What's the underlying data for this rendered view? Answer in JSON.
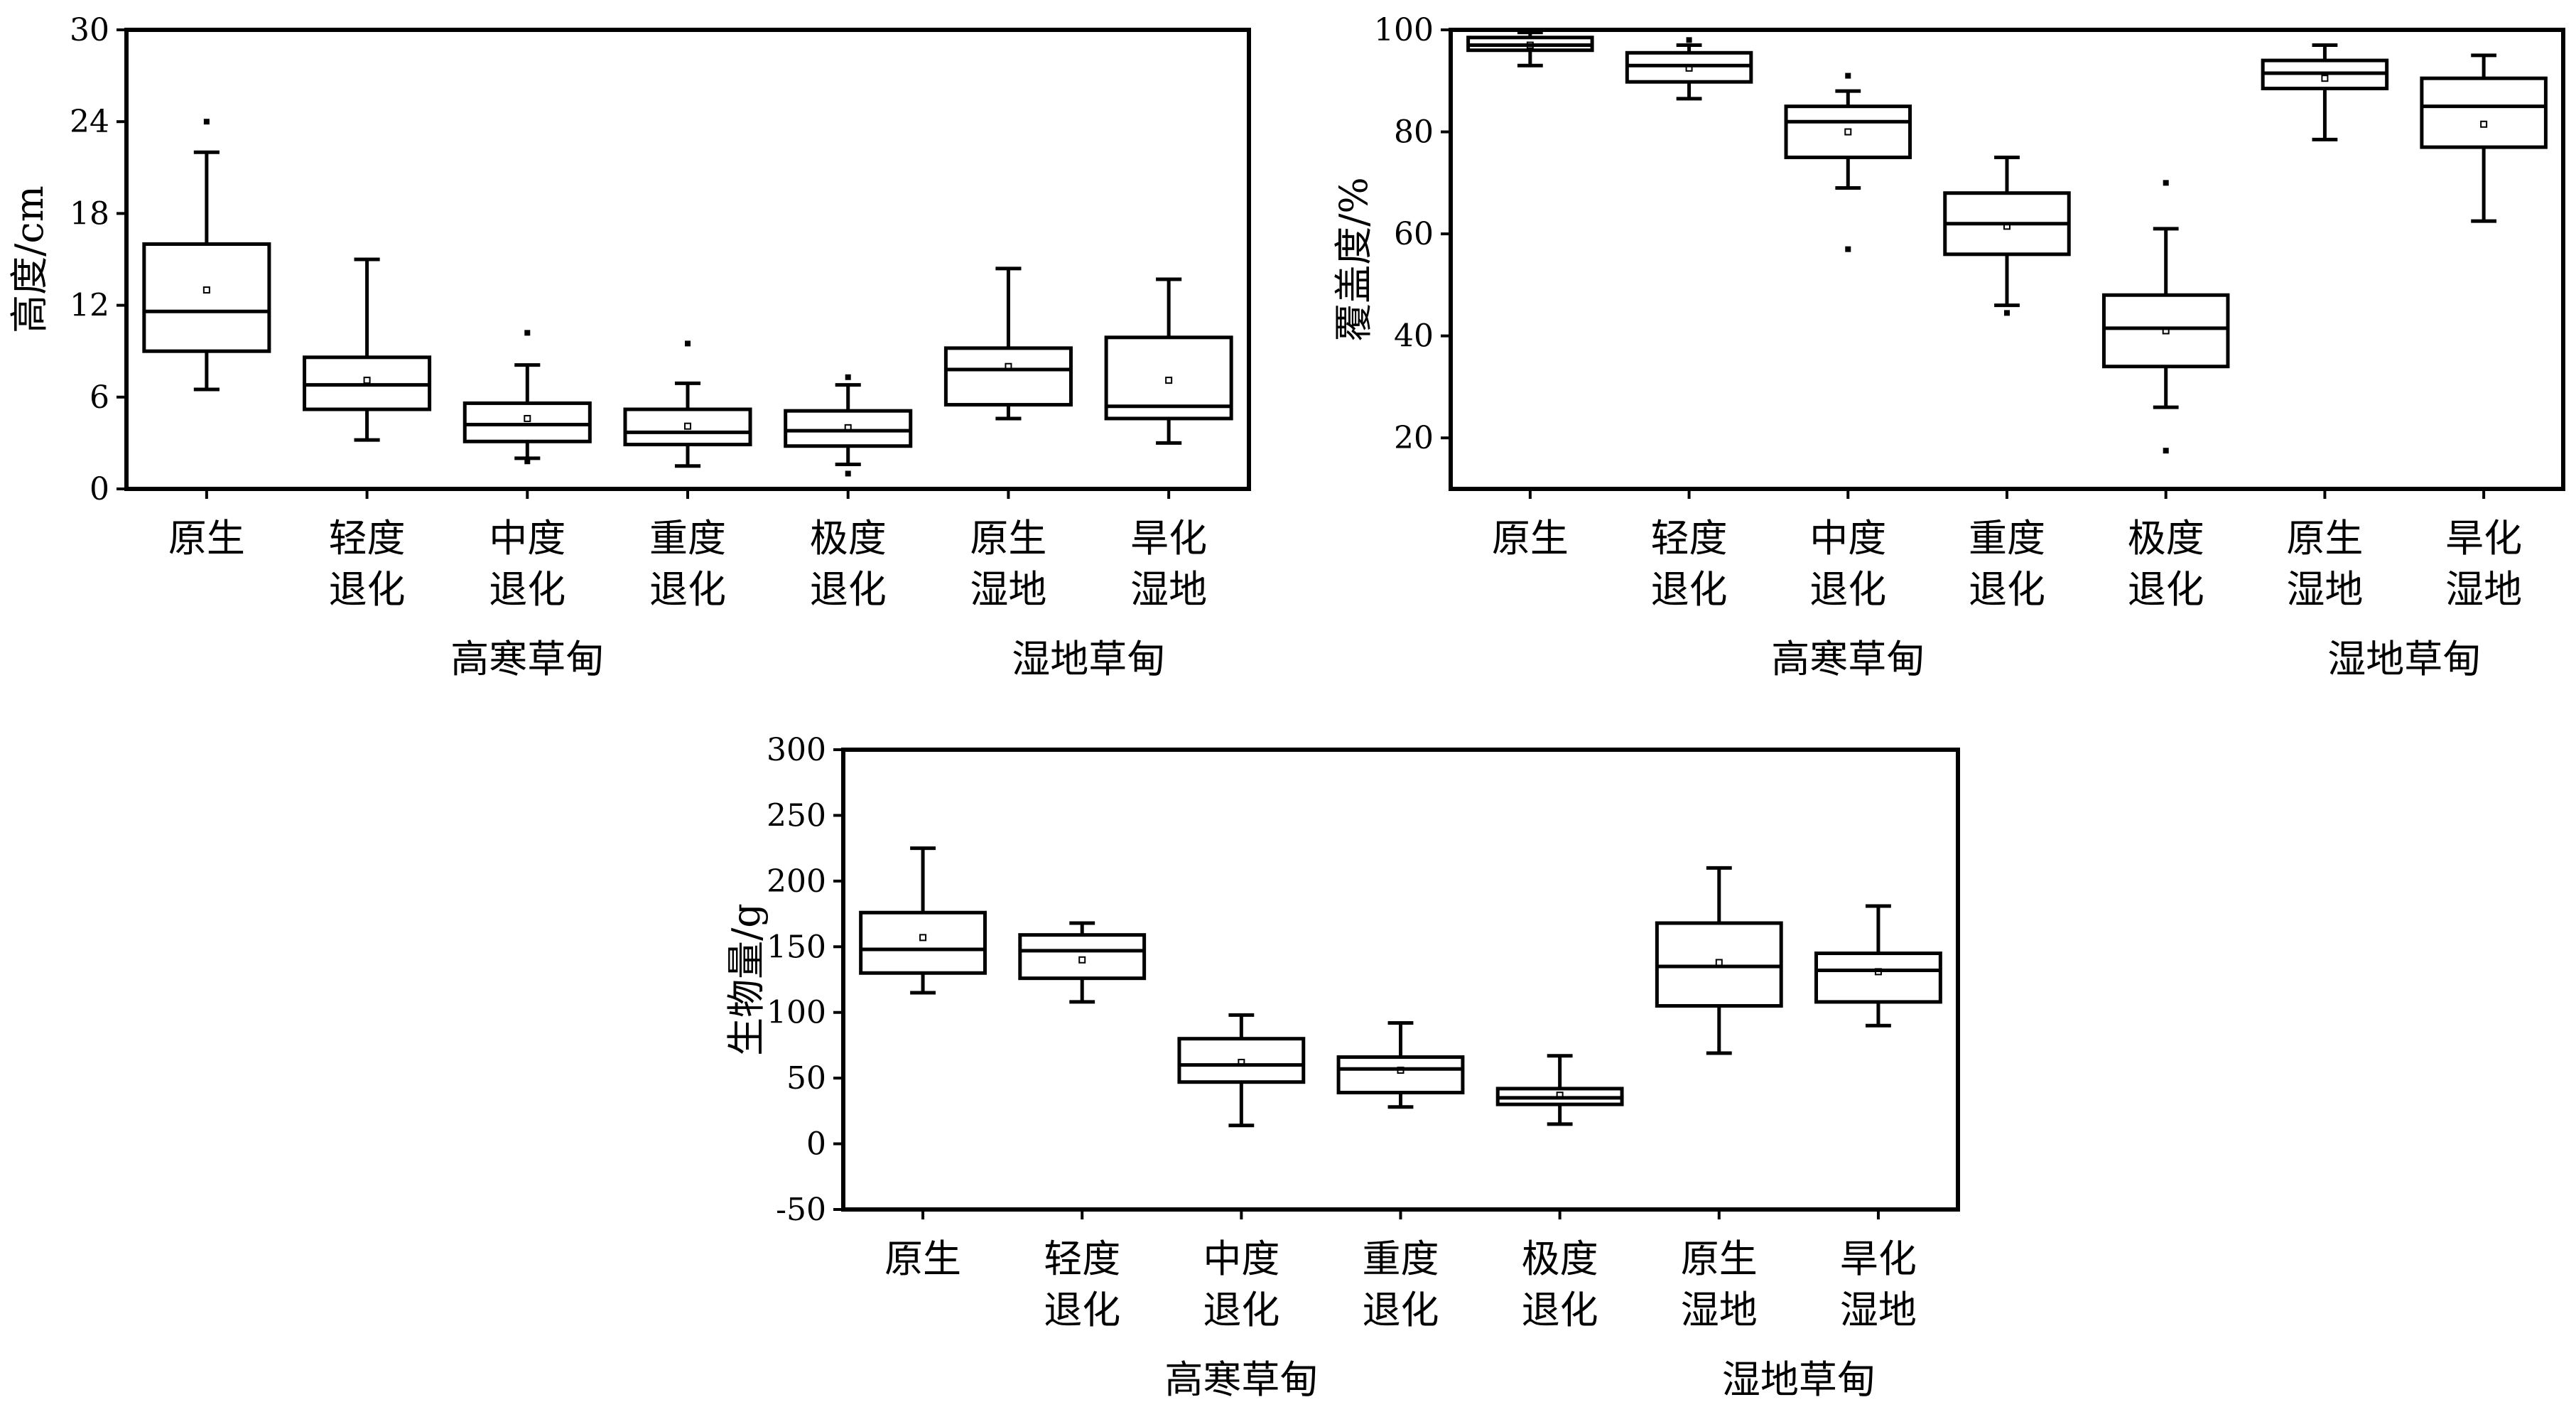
{
  "chart_data": [
    {
      "type": "box",
      "title": "",
      "xlabel": "",
      "ylabel": "高度/cm",
      "ylim": [
        0,
        30
      ],
      "yticks": [
        "0",
        "6",
        "12",
        "18",
        "24",
        "30"
      ],
      "categories": [
        [
          "原生"
        ],
        [
          "轻度",
          "退化"
        ],
        [
          "中度",
          "退化"
        ],
        [
          "重度",
          "退化"
        ],
        [
          "极度",
          "退化"
        ],
        [
          "原生",
          "湿地"
        ],
        [
          "旱化",
          "湿地"
        ]
      ],
      "groups": [
        {
          "label": "高寒草甸",
          "from": 0,
          "to": 4
        },
        {
          "label": "湿地草甸",
          "from": 5,
          "to": 6
        }
      ],
      "boxes": [
        {
          "min": 6.5,
          "q1": 9.0,
          "median": 11.6,
          "q3": 16.0,
          "max": 22.0,
          "mean": 13.0,
          "outliers": [
            24.0
          ]
        },
        {
          "min": 3.2,
          "q1": 5.2,
          "median": 6.8,
          "q3": 8.6,
          "max": 15.0,
          "mean": 7.1,
          "outliers": []
        },
        {
          "min": 2.0,
          "q1": 3.1,
          "median": 4.2,
          "q3": 5.6,
          "max": 8.1,
          "mean": 4.6,
          "outliers": [
            1.8,
            10.2
          ]
        },
        {
          "min": 1.5,
          "q1": 2.9,
          "median": 3.7,
          "q3": 5.2,
          "max": 6.9,
          "mean": 4.1,
          "outliers": [
            9.5
          ]
        },
        {
          "min": 1.6,
          "q1": 2.8,
          "median": 3.8,
          "q3": 5.1,
          "max": 6.8,
          "mean": 4.0,
          "outliers": [
            1.0,
            7.3
          ]
        },
        {
          "min": 4.6,
          "q1": 5.5,
          "median": 7.8,
          "q3": 9.2,
          "max": 14.4,
          "mean": 8.0,
          "outliers": []
        },
        {
          "min": 3.0,
          "q1": 4.6,
          "median": 5.4,
          "q3": 9.9,
          "max": 13.7,
          "mean": 7.1,
          "outliers": []
        }
      ]
    },
    {
      "type": "box",
      "title": "",
      "xlabel": "",
      "ylabel": "覆盖度/%",
      "ylim": [
        10,
        100
      ],
      "yticks": [
        "20",
        "40",
        "60",
        "80",
        "100"
      ],
      "categories": [
        [
          "原生"
        ],
        [
          "轻度",
          "退化"
        ],
        [
          "中度",
          "退化"
        ],
        [
          "重度",
          "退化"
        ],
        [
          "极度",
          "退化"
        ],
        [
          "原生",
          "湿地"
        ],
        [
          "旱化",
          "湿地"
        ]
      ],
      "groups": [
        {
          "label": "高寒草甸",
          "from": 0,
          "to": 4
        },
        {
          "label": "湿地草甸",
          "from": 5,
          "to": 6
        }
      ],
      "boxes": [
        {
          "min": 93.0,
          "q1": 96.0,
          "median": 97.0,
          "q3": 98.5,
          "max": 99.5,
          "mean": 97.0,
          "outliers": []
        },
        {
          "min": 86.5,
          "q1": 89.8,
          "median": 93.0,
          "q3": 95.5,
          "max": 97.0,
          "mean": 92.5,
          "outliers": [
            98.0
          ]
        },
        {
          "min": 69.0,
          "q1": 75.0,
          "median": 82.0,
          "q3": 85.0,
          "max": 88.0,
          "mean": 80.0,
          "outliers": [
            57.0,
            91.0
          ]
        },
        {
          "min": 46.0,
          "q1": 56.0,
          "median": 62.0,
          "q3": 68.0,
          "max": 75.0,
          "mean": 61.5,
          "outliers": [
            44.5
          ]
        },
        {
          "min": 26.0,
          "q1": 34.0,
          "median": 41.5,
          "q3": 48.0,
          "max": 61.0,
          "mean": 41.0,
          "outliers": [
            17.5,
            70.0
          ]
        },
        {
          "min": 78.5,
          "q1": 88.5,
          "median": 91.5,
          "q3": 94.0,
          "max": 97.0,
          "mean": 90.5,
          "outliers": []
        },
        {
          "min": 62.5,
          "q1": 77.0,
          "median": 85.0,
          "q3": 90.5,
          "max": 95.0,
          "mean": 81.5,
          "outliers": []
        }
      ]
    },
    {
      "type": "box",
      "title": "",
      "xlabel": "",
      "ylabel": "生物量/g",
      "ylim": [
        -50,
        300
      ],
      "yticks": [
        "-50",
        "0",
        "50",
        "100",
        "150",
        "200",
        "250",
        "300"
      ],
      "categories": [
        [
          "原生"
        ],
        [
          "轻度",
          "退化"
        ],
        [
          "中度",
          "退化"
        ],
        [
          "重度",
          "退化"
        ],
        [
          "极度",
          "退化"
        ],
        [
          "原生",
          "湿地"
        ],
        [
          "旱化",
          "湿地"
        ]
      ],
      "groups": [
        {
          "label": "高寒草甸",
          "from": 0,
          "to": 4
        },
        {
          "label": "湿地草甸",
          "from": 5,
          "to": 6
        }
      ],
      "boxes": [
        {
          "min": 115,
          "q1": 130,
          "median": 148,
          "q3": 176,
          "max": 225,
          "mean": 157,
          "outliers": []
        },
        {
          "min": 108,
          "q1": 126,
          "median": 147,
          "q3": 159,
          "max": 168,
          "mean": 140,
          "outliers": []
        },
        {
          "min": 14,
          "q1": 47,
          "median": 60,
          "q3": 80,
          "max": 98,
          "mean": 62,
          "outliers": []
        },
        {
          "min": 28,
          "q1": 39,
          "median": 57,
          "q3": 66,
          "max": 92,
          "mean": 56,
          "outliers": []
        },
        {
          "min": 15,
          "q1": 30,
          "median": 35,
          "q3": 42,
          "max": 67,
          "mean": 37,
          "outliers": []
        },
        {
          "min": 69,
          "q1": 105,
          "median": 135,
          "q3": 168,
          "max": 210,
          "mean": 138,
          "outliers": []
        },
        {
          "min": 90,
          "q1": 108,
          "median": 132,
          "q3": 145,
          "max": 181,
          "mean": 131,
          "outliers": []
        }
      ]
    }
  ]
}
